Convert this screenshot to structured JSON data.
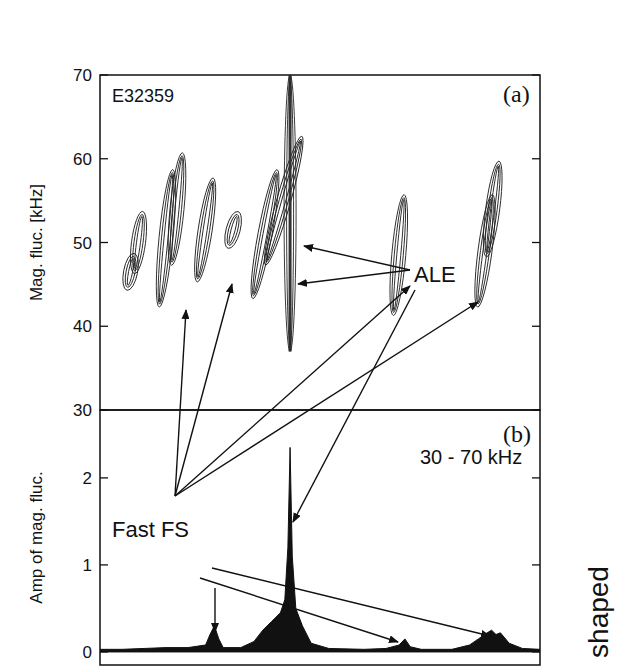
{
  "chart_data": [
    {
      "type": "contour",
      "panel_label": "(a)",
      "title": "E32359",
      "y_label": "Mag. fluc. [kHz]",
      "xlim": [
        0,
        100
      ],
      "ylim": [
        30,
        70
      ],
      "yticks": [
        30,
        40,
        50,
        60,
        70
      ],
      "tick_labels": "y",
      "bursts": [
        {
          "x": [
            6.4,
            7.5
          ],
          "y": [
            45,
            48
          ]
        },
        {
          "x": [
            8,
            9.5
          ],
          "y": [
            47,
            53
          ]
        },
        {
          "x": [
            13.6,
            16.4
          ],
          "y": [
            43,
            58
          ]
        },
        {
          "x": [
            16.4,
            18.6
          ],
          "y": [
            48,
            60
          ]
        },
        {
          "x": [
            22.3,
            25.5
          ],
          "y": [
            46,
            57
          ]
        },
        {
          "x": [
            29.5,
            31
          ],
          "y": [
            50,
            53
          ]
        },
        {
          "x": [
            35,
            40
          ],
          "y": [
            44,
            58
          ]
        },
        {
          "x": [
            38,
            45.5
          ],
          "y": [
            48,
            62
          ]
        },
        {
          "x": [
            66.8,
            69
          ],
          "y": [
            42,
            55
          ]
        },
        {
          "x": [
            86,
            89
          ],
          "y": [
            43,
            55
          ]
        },
        {
          "x": [
            88,
            90.5
          ],
          "y": [
            49,
            59
          ]
        }
      ],
      "ale": {
        "x": 43.2,
        "y": [
          37,
          70
        ]
      },
      "annotations": [
        "ALE",
        "Fast FS"
      ]
    },
    {
      "type": "area",
      "panel_label": "(b)",
      "title": "30 - 70 kHz",
      "y_label": "Amp of mag. fluc.",
      "xlim": [
        0,
        100
      ],
      "ylim": [
        -0.15,
        2.78
      ],
      "yticks": [
        0,
        1,
        2
      ],
      "tick_labels": "y",
      "color": "#111111",
      "x": [
        0,
        5,
        10,
        15,
        20,
        24,
        25,
        26,
        27,
        28,
        32,
        35,
        37,
        39,
        41,
        42,
        42.7,
        43.2,
        43.7,
        44.5,
        46,
        48,
        52,
        60,
        65,
        68,
        69.3,
        70.5,
        73,
        80,
        84,
        86,
        88,
        89,
        90,
        91,
        93,
        96,
        100
      ],
      "values": [
        0.03,
        0.03,
        0.04,
        0.05,
        0.05,
        0.08,
        0.2,
        0.3,
        0.15,
        0.05,
        0.05,
        0.12,
        0.25,
        0.35,
        0.45,
        0.6,
        1.2,
        2.35,
        1.1,
        0.5,
        0.3,
        0.1,
        0.04,
        0.03,
        0.04,
        0.08,
        0.15,
        0.06,
        0.03,
        0.03,
        0.08,
        0.15,
        0.22,
        0.25,
        0.2,
        0.22,
        0.1,
        0.04,
        0.03
      ],
      "annotations": [
        "Fast FS"
      ]
    }
  ],
  "side_label": "shaped"
}
